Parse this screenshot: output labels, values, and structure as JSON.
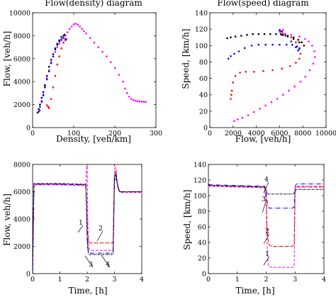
{
  "colors": {
    "1": "#ff00ff",
    "2": "#ff0000",
    "3": "#0000ff",
    "4": "#000000"
  },
  "chart_data": [
    {
      "id": "p1",
      "type": "scatter",
      "title": "Flow(density) diagram",
      "xlabel": "Density, [veh/km]",
      "ylabel": "Flow, [veh/h]",
      "xlim": [
        0,
        300
      ],
      "ylim": [
        0,
        10000
      ],
      "xticks": [
        "0",
        "100",
        "200",
        "300"
      ],
      "yticks": [
        "0",
        "2000",
        "4000",
        "6000",
        "8000",
        "10000"
      ],
      "series": [
        {
          "key": "1",
          "dashed": false,
          "marker": "dot",
          "x": [
            18,
            22,
            26,
            30,
            35,
            40,
            45,
            50,
            55,
            60,
            65,
            70,
            75,
            80,
            85,
            90,
            95,
            100,
            105,
            110,
            115,
            120,
            125,
            130,
            140,
            150,
            160,
            170,
            180,
            190,
            200,
            210,
            220,
            225,
            230,
            235,
            240,
            245,
            250,
            255,
            260,
            265,
            270,
            275
          ],
          "y": [
            1500,
            2200,
            2900,
            3600,
            4300,
            5000,
            5700,
            6200,
            6600,
            7000,
            7300,
            7600,
            7800,
            8000,
            8300,
            8600,
            8800,
            9000,
            9050,
            8950,
            8800,
            8600,
            8400,
            8200,
            7800,
            7400,
            7000,
            6600,
            6200,
            5700,
            5200,
            4600,
            4000,
            3400,
            3000,
            2700,
            2500,
            2400,
            2350,
            2300,
            2280,
            2260,
            2250,
            2240
          ]
        },
        {
          "key": "2",
          "dashed": false,
          "marker": "dot",
          "x": [
            35,
            38,
            40,
            45,
            50,
            55,
            60,
            65,
            70,
            75,
            80,
            82
          ],
          "y": [
            1950,
            1800,
            1700,
            2500,
            3500,
            4500,
            5500,
            6200,
            6900,
            7400,
            7600,
            7700
          ]
        },
        {
          "key": "3",
          "dashed": false,
          "marker": "dot",
          "x": [
            15,
            18,
            22,
            26,
            30,
            35,
            40,
            45,
            50,
            55,
            60,
            65,
            70,
            75,
            80
          ],
          "y": [
            1400,
            1800,
            2300,
            2800,
            3500,
            4200,
            4900,
            5600,
            6200,
            6800,
            7200,
            7500,
            7700,
            7800,
            7700
          ]
        },
        {
          "key": "4",
          "dashed": false,
          "marker": "dot",
          "x": [
            12,
            15,
            18,
            22,
            26,
            30,
            35,
            40,
            45,
            50,
            55,
            60,
            65,
            70,
            75,
            78
          ],
          "y": [
            1300,
            1600,
            2000,
            2600,
            3100,
            3700,
            4500,
            5300,
            5900,
            6400,
            6900,
            7300,
            7600,
            7900,
            8000,
            8100
          ]
        }
      ]
    },
    {
      "id": "p2",
      "type": "scatter",
      "title": "Flow(speed) diagram",
      "xlabel": "Flow, [veh/h]",
      "ylabel": "Speed, [km/h]",
      "xlim": [
        0,
        10000
      ],
      "ylim": [
        0,
        140
      ],
      "xticks": [
        "0",
        "2000",
        "4000",
        "6000",
        "8000",
        "10000"
      ],
      "yticks": [
        "0",
        "20",
        "40",
        "60",
        "80",
        "100",
        "120",
        "140"
      ],
      "series": [
        {
          "key": "1",
          "dashed": false,
          "marker": "dot",
          "x": [
            2100,
            2400,
            2800,
            3300,
            3800,
            4300,
            4800,
            5300,
            5800,
            6300,
            6800,
            7300,
            7800,
            8200,
            8600,
            8900,
            9050,
            9000,
            8800,
            8500,
            8200,
            7700,
            7000,
            6300,
            6000,
            6100,
            6300
          ],
          "y": [
            8,
            10,
            12,
            15,
            19,
            23,
            27,
            31,
            35,
            40,
            45,
            50,
            56,
            62,
            70,
            78,
            86,
            93,
            100,
            105,
            108,
            111,
            113,
            115,
            117,
            118,
            119
          ]
        },
        {
          "key": "2",
          "dashed": false,
          "marker": "dot",
          "x": [
            1800,
            1850,
            1900,
            2000,
            2200,
            2600,
            3100,
            3800,
            4600,
            5400,
            6200,
            6900,
            7400,
            7700,
            7800,
            7700,
            7400,
            7000,
            6500,
            6100
          ],
          "y": [
            35,
            40,
            45,
            55,
            63,
            67,
            68,
            68,
            69,
            70,
            72,
            75,
            79,
            84,
            90,
            97,
            104,
            110,
            114,
            117
          ]
        },
        {
          "key": "3",
          "dashed": false,
          "marker": "dot",
          "x": [
            1600,
            1800,
            2100,
            2500,
            3000,
            3600,
            4200,
            4800,
            5400,
            6000,
            6600,
            7100,
            7500,
            7700,
            7600,
            7400,
            7000,
            6500,
            6200,
            6000
          ],
          "y": [
            84,
            87,
            90,
            93,
            97,
            100,
            101,
            101,
            101,
            101,
            101,
            101,
            99,
            96,
            94,
            98,
            105,
            112,
            117,
            119
          ]
        },
        {
          "key": "4",
          "dashed": false,
          "marker": "dot",
          "x": [
            1500,
            1800,
            2200,
            2700,
            3200,
            3700,
            4200,
            4700,
            5200,
            5700,
            6200,
            6700,
            7200,
            7600,
            7900,
            8100,
            7700,
            7200,
            6700,
            6300,
            6100
          ],
          "y": [
            109,
            110,
            111,
            112,
            113,
            114,
            114,
            114,
            114,
            114,
            113,
            112,
            110,
            107,
            104,
            100,
            104,
            108,
            111,
            113,
            114
          ]
        }
      ]
    },
    {
      "id": "p3",
      "type": "line",
      "title": "",
      "xlabel": "Time, [h]",
      "ylabel": "Flow, veh/h]",
      "xlim": [
        0,
        4
      ],
      "ylim": [
        0,
        8000
      ],
      "xticks": [
        "0",
        "1",
        "2",
        "3",
        "4"
      ],
      "yticks": [
        "0",
        "2000",
        "4000",
        "6000",
        "8000"
      ],
      "annotations": [
        "1",
        "2",
        "3",
        "4"
      ],
      "series": [
        {
          "key": "1",
          "dashed": true,
          "x": [
            0,
            0.02,
            0.05,
            1.0,
            1.95,
            1.98,
            2.0,
            2.02,
            2.05,
            2.1,
            2.9,
            2.95,
            3.0,
            3.05,
            3.1,
            3.15,
            3.2,
            4.0
          ],
          "y": [
            0,
            3000,
            6500,
            6500,
            6450,
            7800,
            7900,
            4000,
            2000,
            1700,
            1700,
            1800,
            7700,
            7800,
            6500,
            6100,
            5950,
            5950
          ]
        },
        {
          "key": "2",
          "dashed": true,
          "x": [
            0,
            0.02,
            0.05,
            1.0,
            1.95,
            1.98,
            2.0,
            2.02,
            2.05,
            2.1,
            2.9,
            2.95,
            3.0,
            3.05,
            3.1,
            3.15,
            3.2,
            4.0
          ],
          "y": [
            0,
            3000,
            6550,
            6550,
            6500,
            5000,
            3500,
            2800,
            2300,
            2250,
            2250,
            2300,
            7000,
            7300,
            6600,
            6200,
            6000,
            6000
          ]
        },
        {
          "key": "3",
          "dashed": true,
          "x": [
            0,
            0.02,
            0.05,
            1.0,
            1.95,
            1.98,
            2.0,
            2.02,
            2.05,
            2.1,
            2.9,
            2.95,
            3.0,
            3.05,
            3.1,
            3.15,
            3.2,
            4.0
          ],
          "y": [
            0,
            3000,
            6550,
            6550,
            6500,
            5000,
            3000,
            2000,
            1550,
            1500,
            1500,
            1550,
            6800,
            7100,
            6600,
            6200,
            6000,
            6000
          ]
        },
        {
          "key": "4",
          "dashed": true,
          "x": [
            0,
            0.02,
            0.05,
            1.0,
            1.95,
            1.98,
            2.0,
            2.02,
            2.05,
            2.1,
            2.9,
            2.95,
            3.0,
            3.05,
            3.1,
            3.15,
            3.2,
            4.0
          ],
          "y": [
            0,
            3000,
            6600,
            6600,
            6550,
            4500,
            2500,
            1800,
            1450,
            1400,
            1400,
            1450,
            7100,
            7500,
            6700,
            6200,
            6000,
            6000
          ]
        }
      ]
    },
    {
      "id": "p4",
      "type": "line",
      "title": "",
      "xlabel": "Time, [h]",
      "ylabel": "Speed, [km/h]",
      "xlim": [
        0,
        4
      ],
      "ylim": [
        0,
        140
      ],
      "xticks": [
        "0",
        "1",
        "2",
        "3",
        "4"
      ],
      "yticks": [
        "0",
        "20",
        "40",
        "60",
        "80",
        "100",
        "120",
        "140"
      ],
      "annotations": [
        "4",
        "3",
        "2",
        "1"
      ],
      "series": [
        {
          "key": "1",
          "dashed": true,
          "x": [
            0,
            0.05,
            1.0,
            1.95,
            2.0,
            2.03,
            2.06,
            2.1,
            2.2,
            2.9,
            2.97,
            3.0,
            3.05,
            4.0
          ],
          "y": [
            113,
            112,
            111,
            110,
            90,
            40,
            15,
            9,
            8,
            8,
            9,
            110,
            112,
            112
          ]
        },
        {
          "key": "2",
          "dashed": true,
          "x": [
            0,
            0.05,
            1.0,
            1.95,
            2.0,
            2.03,
            2.06,
            2.1,
            2.2,
            2.9,
            2.97,
            3.0,
            3.05,
            4.0
          ],
          "y": [
            114,
            113,
            112,
            111,
            95,
            60,
            45,
            37,
            35,
            35,
            37,
            108,
            111,
            111
          ]
        },
        {
          "key": "3",
          "dashed": true,
          "x": [
            0,
            0.05,
            1.0,
            1.95,
            2.0,
            2.03,
            2.06,
            2.1,
            2.2,
            2.9,
            2.97,
            3.0,
            3.05,
            4.0
          ],
          "y": [
            115,
            114,
            113,
            112,
            106,
            94,
            86,
            84,
            84,
            84,
            85,
            112,
            115,
            115
          ]
        },
        {
          "key": "4",
          "dashed": true,
          "x": [
            0,
            0.05,
            1.0,
            1.95,
            2.0,
            2.03,
            2.06,
            2.1,
            2.2,
            2.9,
            2.97,
            3.0,
            3.05,
            4.0
          ],
          "y": [
            114,
            113,
            112,
            111,
            108,
            104,
            102,
            102,
            102,
            102,
            103,
            106,
            108,
            108
          ]
        }
      ]
    }
  ]
}
